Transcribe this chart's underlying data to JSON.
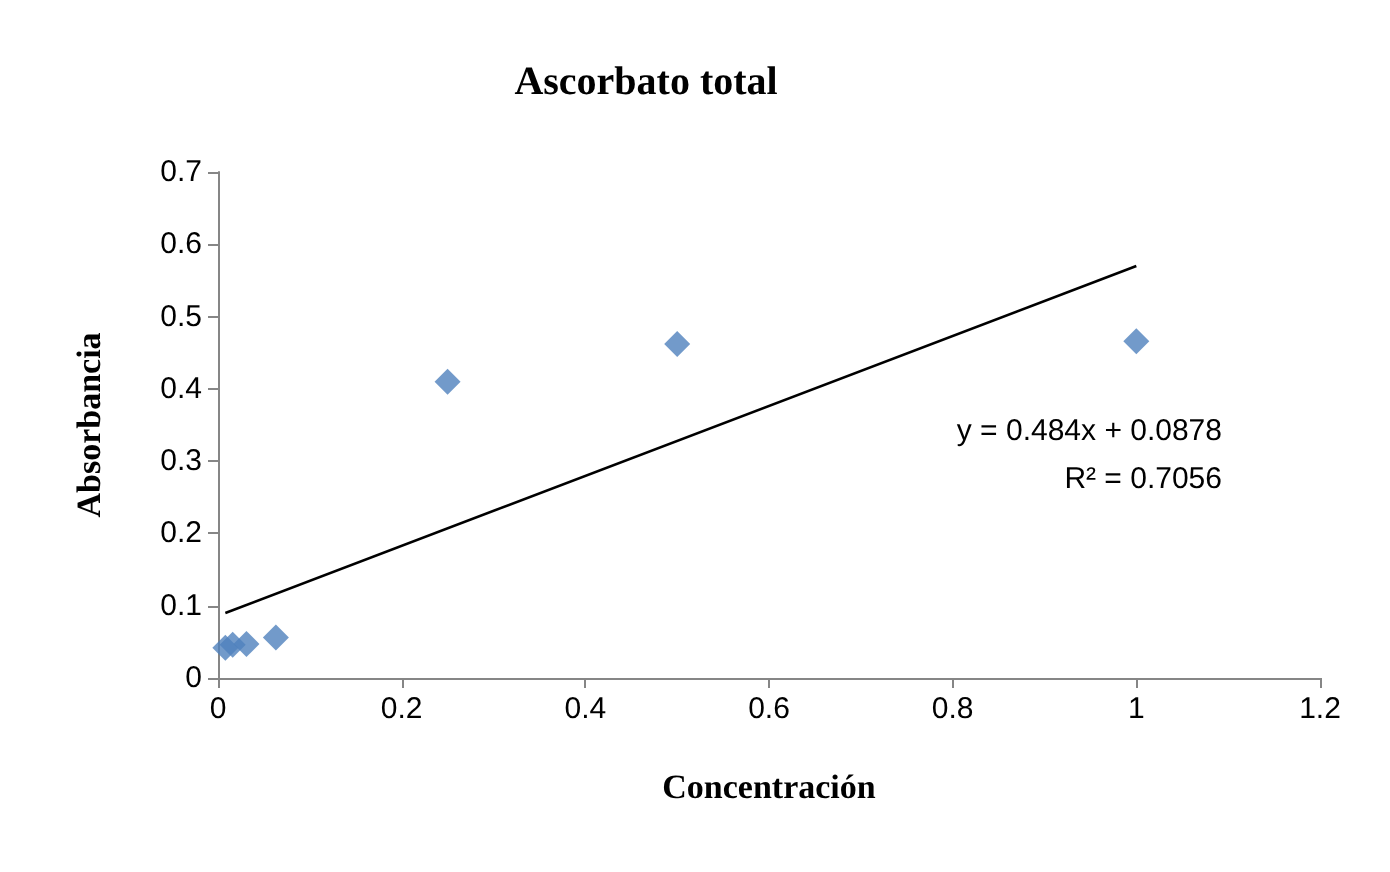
{
  "chart_data": {
    "type": "scatter",
    "title": "Ascorbato total",
    "xlabel": "Concentración",
    "ylabel": "Absorbancia",
    "series": [
      {
        "marker": "diamond",
        "color": "#4f81bd",
        "x": [
          0.008,
          0.016,
          0.031,
          0.063,
          0.25,
          0.5,
          1
        ],
        "values": [
          0.042,
          0.046,
          0.047,
          0.056,
          0.41,
          0.462,
          0.466
        ]
      },
      {
        "type": "line",
        "color": "#000000",
        "x": [
          0.008,
          1
        ],
        "values": [
          0.09,
          0.57
        ]
      }
    ],
    "xlim": [
      0,
      1.2
    ],
    "xticks": [
      0,
      0.2,
      0.4,
      0.6,
      0.8,
      1,
      1.2
    ],
    "ylim": [
      0,
      0.7
    ],
    "yticks": [
      0,
      0.1,
      0.2,
      0.3,
      0.4,
      0.5,
      0.6,
      0.7
    ],
    "grid": false,
    "annotations": [
      "y = 0.484x + 0.0878",
      "R² = 0.7056"
    ]
  }
}
